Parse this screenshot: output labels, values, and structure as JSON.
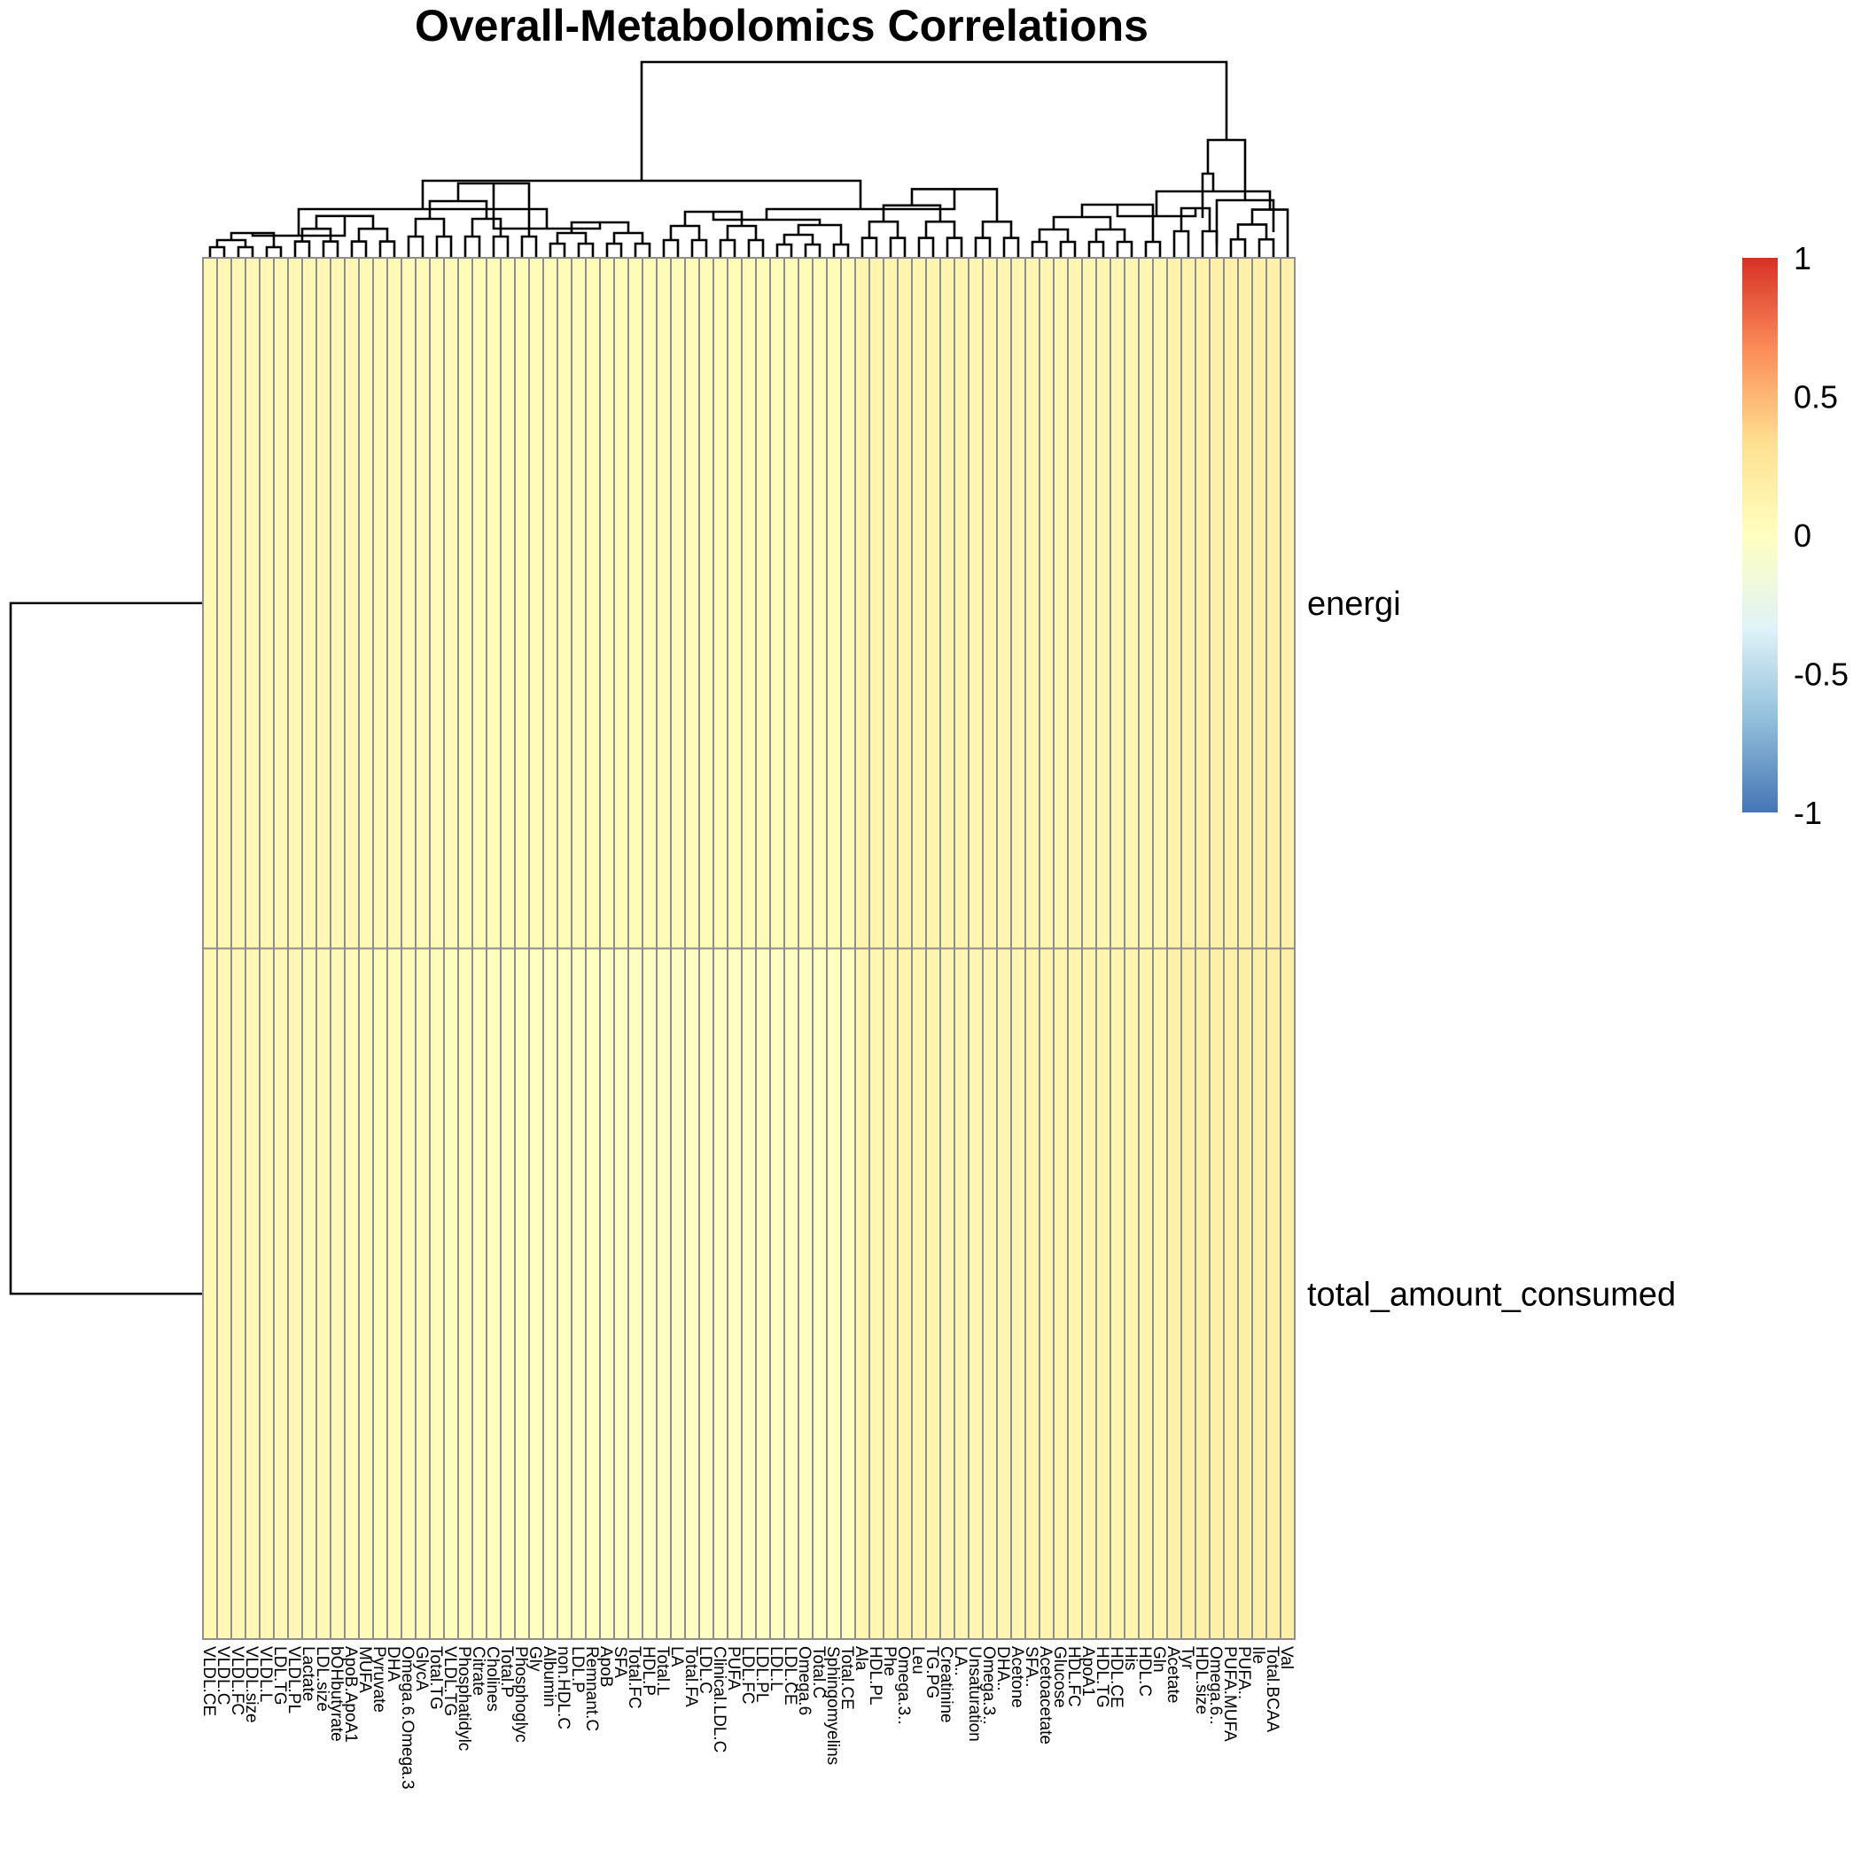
{
  "chart_data": {
    "type": "heatmap",
    "title": "Overall-Metabolomics Correlations",
    "rows": [
      "energi",
      "total_amount_consumed"
    ],
    "columns": [
      "VLDL.CE",
      "VLDL.C",
      "VLDL.FC",
      "VLDL.size",
      "VLDL.L",
      "LDL.TG",
      "VLDL.PL",
      "Lactate",
      "LDL.size",
      "bOHbutyrate",
      "ApoB.ApoA1",
      "MUFA",
      "Pyruvate",
      "DHA",
      "Omega.6.Omega.3",
      "GlycA",
      "Total.TG",
      "VLDL.TG",
      "Phosphatidylc",
      "Citrate",
      "Cholines",
      "Total.P",
      "Phosphoglyc",
      "Gly",
      "Albumin",
      "non.HDL.C",
      "LDL.P",
      "Remnant.C",
      "ApoB",
      "SFA",
      "Total.FC",
      "HDL.P",
      "Total.L",
      "LA",
      "Total.FA",
      "LDL.C",
      "Clinical.LDL.C",
      "PUFA",
      "LDL.FC",
      "LDL.PL",
      "LDL.L",
      "LDL.CE",
      "Omega.6",
      "Total.C",
      "Sphingomyelins",
      "Total.CE",
      "Ala",
      "HDL.PL",
      "Phe",
      "Omega.3..",
      "Leu",
      "TG.PG",
      "Creatinine",
      "LA..",
      "Unsaturation",
      "Omega.3..",
      "DHA..",
      "Acetone",
      "SFA..",
      "Acetoacetate",
      "Glucose",
      "HDL.FC",
      "ApoA1",
      "HDL.TG",
      "HDL.CE",
      "His",
      "HDL.C",
      "Gln",
      "Acetate",
      "Tyr",
      "HDL.size",
      "Omega.6..",
      "PUFA.MUFA",
      "PUFA..",
      "Ile",
      "Total.BCAA",
      "Val"
    ],
    "values": [
      [
        0.07,
        0.08,
        0.08,
        0.08,
        0.08,
        0.08,
        0.08,
        0.07,
        0.07,
        0.07,
        0.07,
        0.06,
        0.06,
        0.06,
        0.05,
        0.05,
        0.05,
        0.05,
        0.04,
        0.04,
        0.04,
        0.04,
        0.04,
        0.04,
        0.04,
        0.04,
        0.04,
        0.04,
        0.04,
        0.04,
        0.04,
        0.04,
        0.04,
        0.04,
        0.04,
        0.04,
        0.04,
        0.04,
        0.04,
        0.04,
        0.04,
        0.04,
        0.04,
        0.04,
        0.04,
        0.04,
        0.11,
        0.11,
        0.11,
        0.11,
        0.11,
        0.11,
        0.11,
        0.11,
        0.1,
        0.11,
        0.1,
        0.1,
        0.1,
        0.1,
        0.1,
        0.1,
        0.1,
        0.1,
        0.1,
        0.1,
        0.1,
        0.1,
        0.13,
        0.14,
        0.14,
        0.15,
        0.15,
        0.15,
        0.15,
        0.15,
        0.15
      ],
      [
        0.08,
        0.08,
        0.08,
        0.08,
        0.07,
        0.07,
        0.07,
        0.06,
        0.06,
        0.06,
        0.05,
        0.05,
        0.04,
        0.04,
        0.03,
        0.03,
        0.03,
        0.02,
        0.02,
        0.01,
        0.01,
        0.01,
        0.0,
        0.0,
        -0.01,
        -0.01,
        -0.01,
        -0.01,
        -0.02,
        -0.02,
        -0.02,
        -0.02,
        -0.02,
        -0.02,
        -0.02,
        -0.02,
        -0.02,
        -0.02,
        -0.02,
        -0.02,
        -0.02,
        -0.02,
        -0.02,
        -0.01,
        -0.01,
        -0.01,
        0.1,
        0.1,
        0.11,
        0.11,
        0.11,
        0.11,
        0.1,
        0.1,
        0.1,
        0.1,
        0.1,
        0.1,
        0.11,
        0.11,
        0.11,
        0.11,
        0.11,
        0.11,
        0.11,
        0.11,
        0.11,
        0.11,
        0.15,
        0.16,
        0.16,
        0.16,
        0.16,
        0.17,
        0.17,
        0.17,
        0.17
      ]
    ],
    "color_scale": {
      "min": -1,
      "max": 1,
      "ticks": [
        1,
        0.5,
        0,
        -0.5,
        -1
      ],
      "colors": [
        "#4575b4",
        "#91bfdb",
        "#e0f3f8",
        "#ffffbf",
        "#fee090",
        "#fc8d59",
        "#d73027"
      ]
    },
    "legend_position": "right",
    "grid": true,
    "row_dendrogram": true,
    "column_dendrogram": true
  }
}
